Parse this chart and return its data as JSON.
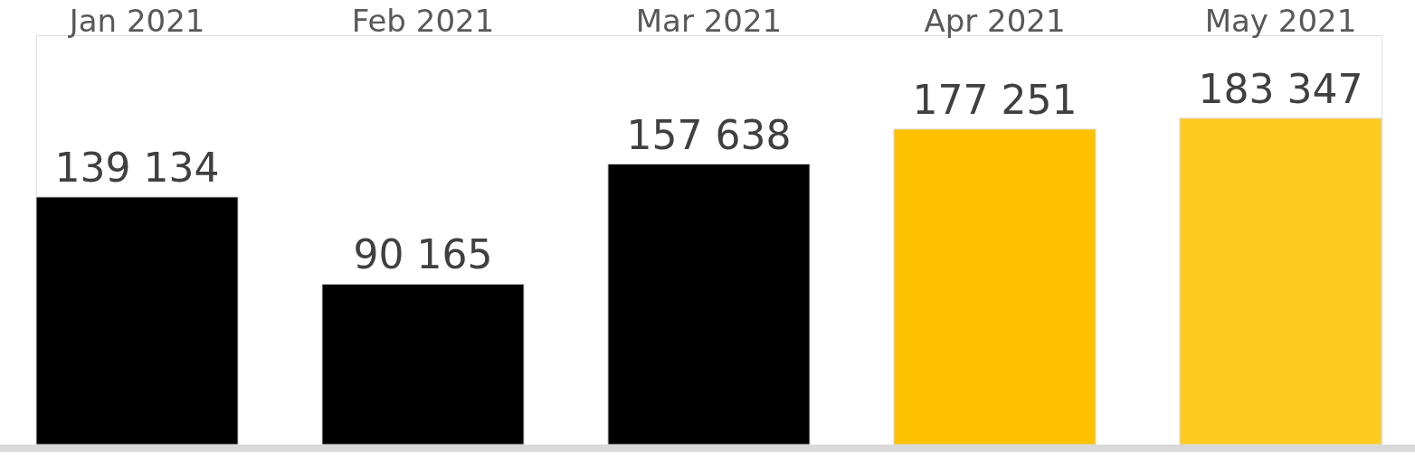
{
  "chart_data": {
    "type": "bar",
    "categories": [
      "Jan 2021",
      "Feb 2021",
      "Mar 2021",
      "Apr 2021",
      "May 2021"
    ],
    "values": [
      139134,
      90165,
      157638,
      177251,
      183347
    ],
    "value_labels": [
      "139 134",
      "90 165",
      "157 638",
      "177 251",
      "183 347"
    ],
    "colors": [
      "#000000",
      "#000000",
      "#000000",
      "#fec200",
      "#ffcb1f"
    ],
    "ylim": [
      0,
      230000
    ]
  }
}
